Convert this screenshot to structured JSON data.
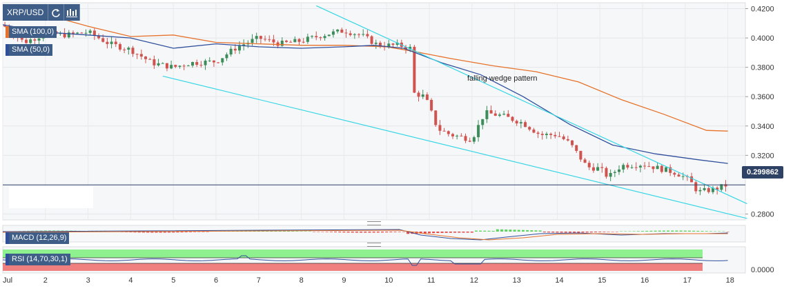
{
  "toolbar": {
    "symbol": "XRP/USD",
    "refresh_icon": "refresh-icon",
    "chart_type_icon": "candles-icon"
  },
  "indicators": {
    "sma100_label": "SMA (100,0)",
    "sma50_label": "SMA (50,0)",
    "macd_label": "MACD (12,26,9)",
    "rsi_label": "RSI (14,70,30,1)"
  },
  "annotation": "falling wedge pattern",
  "last_price_label": "0.299862",
  "colors": {
    "up": "#3c8d5a",
    "down": "#d0534f",
    "sma100": "#e6712a",
    "sma50": "#2f4f9c",
    "trendline": "#38d6e6",
    "price_line": "#2a3f66",
    "rsi_over": "#8ff08f",
    "rsi_under": "#f08080"
  },
  "chart_data": {
    "type": "candlestick",
    "price_axis": {
      "ylim": [
        0.276,
        0.424
      ],
      "ticks": [
        "0.4200",
        "0.4000",
        "0.3800",
        "0.3600",
        "0.3400",
        "0.3200",
        "0.2800"
      ]
    },
    "rsi_axis": {
      "ticks": [
        "0.0000"
      ]
    },
    "x_ticks": [
      "Jul",
      "2",
      "3",
      "4",
      "5",
      "6",
      "7",
      "8",
      "9",
      "10",
      "11",
      "12",
      "13",
      "14",
      "15",
      "16",
      "17",
      "18"
    ],
    "last_price": 0.299862,
    "key_path": [
      [
        0.0,
        0.409
      ],
      [
        0.5,
        0.397
      ],
      [
        1.0,
        0.403
      ],
      [
        1.5,
        0.402
      ],
      [
        2.0,
        0.404
      ],
      [
        2.5,
        0.396
      ],
      [
        3.0,
        0.392
      ],
      [
        3.5,
        0.383
      ],
      [
        4.0,
        0.38
      ],
      [
        4.4,
        0.383
      ],
      [
        5.0,
        0.384
      ],
      [
        5.5,
        0.394
      ],
      [
        6.0,
        0.4
      ],
      [
        6.5,
        0.396
      ],
      [
        7.0,
        0.398
      ],
      [
        7.5,
        0.402
      ],
      [
        8.0,
        0.405
      ],
      [
        8.4,
        0.402
      ],
      [
        8.8,
        0.395
      ],
      [
        9.3,
        0.395
      ],
      [
        9.55,
        0.393
      ],
      [
        9.57,
        0.363
      ],
      [
        9.9,
        0.36
      ],
      [
        10.2,
        0.338
      ],
      [
        10.5,
        0.334
      ],
      [
        11.0,
        0.331
      ],
      [
        11.3,
        0.349
      ],
      [
        11.7,
        0.347
      ],
      [
        12.2,
        0.342
      ],
      [
        12.6,
        0.334
      ],
      [
        13.0,
        0.334
      ],
      [
        13.3,
        0.328
      ],
      [
        13.7,
        0.312
      ],
      [
        14.0,
        0.311
      ],
      [
        14.2,
        0.305
      ],
      [
        14.5,
        0.313
      ],
      [
        15.0,
        0.314
      ],
      [
        15.4,
        0.311
      ],
      [
        15.8,
        0.308
      ],
      [
        16.1,
        0.303
      ],
      [
        16.3,
        0.295
      ],
      [
        16.7,
        0.297
      ],
      [
        17.0,
        0.3
      ]
    ],
    "sma100_path": [
      [
        0.0,
        0.42
      ],
      [
        1.0,
        0.416
      ],
      [
        2.0,
        0.408
      ],
      [
        3.0,
        0.401
      ],
      [
        4.0,
        0.402
      ],
      [
        5.0,
        0.397
      ],
      [
        6.0,
        0.396
      ],
      [
        7.0,
        0.395
      ],
      [
        8.0,
        0.395
      ],
      [
        9.0,
        0.394
      ],
      [
        9.6,
        0.391
      ],
      [
        10.5,
        0.386
      ],
      [
        11.5,
        0.381
      ],
      [
        12.5,
        0.377
      ],
      [
        13.5,
        0.37
      ],
      [
        14.5,
        0.358
      ],
      [
        15.5,
        0.348
      ],
      [
        16.5,
        0.337
      ],
      [
        17.0,
        0.3365
      ]
    ],
    "sma50_path": [
      [
        0.0,
        0.409
      ],
      [
        1.0,
        0.404
      ],
      [
        2.0,
        0.402
      ],
      [
        3.0,
        0.4
      ],
      [
        4.0,
        0.393
      ],
      [
        5.0,
        0.396
      ],
      [
        6.0,
        0.394
      ],
      [
        7.0,
        0.393
      ],
      [
        8.0,
        0.394
      ],
      [
        8.7,
        0.395
      ],
      [
        9.4,
        0.393
      ],
      [
        10.3,
        0.383
      ],
      [
        11.2,
        0.375
      ],
      [
        12.2,
        0.36
      ],
      [
        13.3,
        0.341
      ],
      [
        14.3,
        0.327
      ],
      [
        15.3,
        0.321
      ],
      [
        16.3,
        0.317
      ],
      [
        17.0,
        0.3145
      ]
    ],
    "upper_trendline": [
      [
        7.35,
        0.422
      ],
      [
        17.45,
        0.287
      ]
    ],
    "lower_trendline": [
      [
        3.75,
        0.374
      ],
      [
        17.45,
        0.277
      ]
    ]
  }
}
